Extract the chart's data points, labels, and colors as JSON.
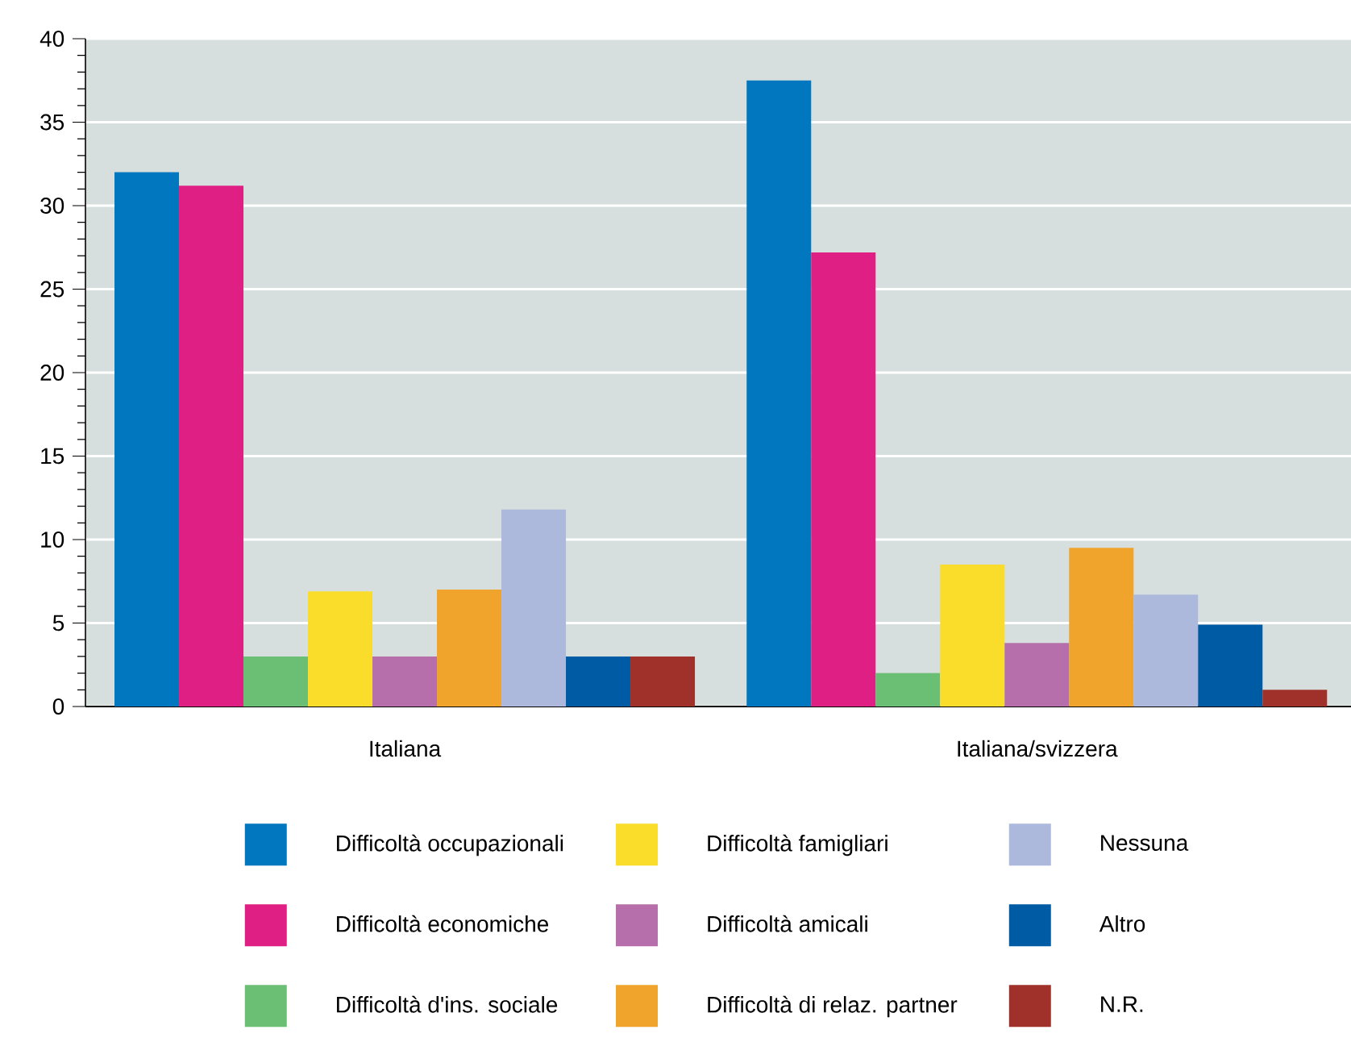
{
  "chart_data": {
    "type": "bar",
    "categories": [
      "Italiana",
      "Italiana/svizzera"
    ],
    "series": [
      {
        "name": "Difficoltà occupazionali",
        "color": "#0077be",
        "values": [
          32,
          37.5
        ]
      },
      {
        "name": "Difficoltà economiche",
        "color": "#e01f84",
        "values": [
          31.2,
          27.2
        ]
      },
      {
        "name": "Difficoltà d'ins. sociale",
        "color": "#6abf74",
        "values": [
          3,
          2
        ]
      },
      {
        "name": "Difficoltà famigliari",
        "color": "#fadd2b",
        "values": [
          6.9,
          8.5
        ]
      },
      {
        "name": "Difficoltà amicali",
        "color": "#b66fab",
        "values": [
          3,
          3.8
        ]
      },
      {
        "name": "Difficoltà di relaz. partner",
        "color": "#f0a42c",
        "values": [
          7,
          9.5
        ]
      },
      {
        "name": "Nessuna",
        "color": "#adb8dd",
        "values": [
          11.8,
          6.7
        ]
      },
      {
        "name": "Altro",
        "color": "#005ba5",
        "values": [
          3,
          4.9
        ]
      },
      {
        "name": "N.R.",
        "color": "#a0302a",
        "values": [
          3,
          1
        ]
      }
    ],
    "ylim": [
      0,
      40
    ],
    "yticks": [
      0,
      5,
      10,
      15,
      20,
      25,
      30,
      35,
      40
    ],
    "grid": "y",
    "legend": "bottom"
  }
}
